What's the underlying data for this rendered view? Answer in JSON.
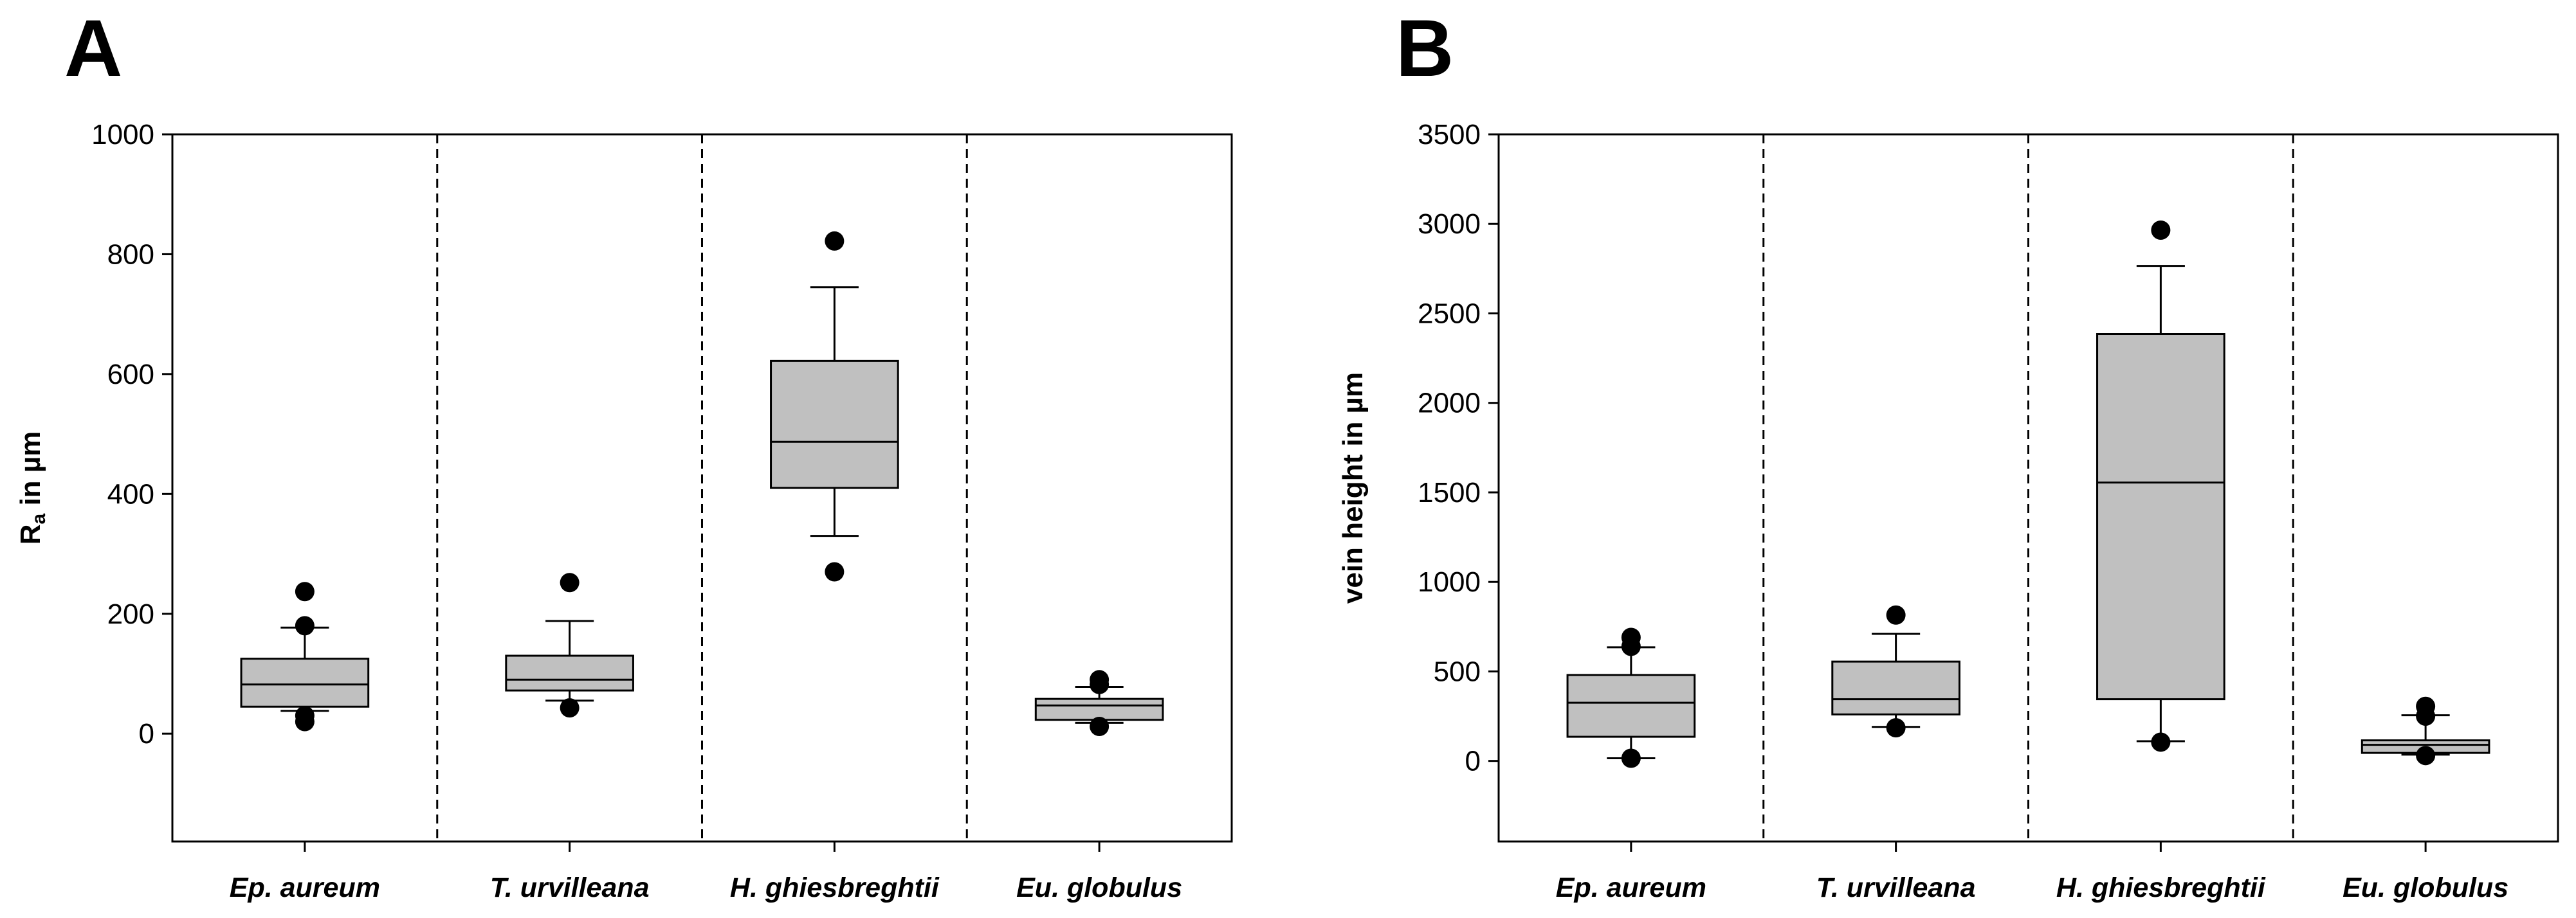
{
  "chart_data": [
    {
      "type": "box",
      "panel_label": "A",
      "title": "",
      "ylabel_main": "R",
      "ylabel_sub": "a",
      "ylabel_rest": " in µm",
      "xlabel": "",
      "ylim": [
        -180,
        1000
      ],
      "yticks": [
        0,
        200,
        400,
        600,
        800,
        1000
      ],
      "categories": [
        "Ep. aureum",
        "T. urvilleana",
        "H. ghiesbreghtii",
        "Eu. globulus"
      ],
      "box_color": "#c0c0c0",
      "boxes": [
        {
          "category": "Ep. aureum",
          "q1": 45,
          "median": 82,
          "q3": 125,
          "whisker_low": 38,
          "whisker_high": 177,
          "outliers": [
            237,
            180,
            30,
            20
          ]
        },
        {
          "category": "T. urvilleana",
          "q1": 72,
          "median": 90,
          "q3": 130,
          "whisker_low": 55,
          "whisker_high": 188,
          "outliers": [
            252,
            43
          ]
        },
        {
          "category": "H. ghiesbreghtii",
          "q1": 410,
          "median": 487,
          "q3": 622,
          "whisker_low": 330,
          "whisker_high": 745,
          "outliers": [
            822,
            270
          ]
        },
        {
          "category": "Eu. globulus",
          "q1": 23,
          "median": 47,
          "q3": 58,
          "whisker_low": 18,
          "whisker_high": 78,
          "outliers": [
            90,
            82,
            12
          ]
        }
      ]
    },
    {
      "type": "box",
      "panel_label": "B",
      "title": "",
      "ylabel_main": "vein height in µm",
      "ylabel_sub": "",
      "ylabel_rest": "",
      "xlabel": "",
      "ylim": [
        -450,
        3500
      ],
      "yticks": [
        0,
        500,
        1000,
        1500,
        2000,
        2500,
        3000,
        3500
      ],
      "categories": [
        "Ep. aureum",
        "T. urvilleana",
        "H. ghiesbreghtii",
        "Eu. globulus"
      ],
      "box_color": "#c0c0c0",
      "boxes": [
        {
          "category": "Ep. aureum",
          "q1": 135,
          "median": 325,
          "q3": 480,
          "whisker_low": 15,
          "whisker_high": 635,
          "outliers": [
            690,
            640,
            15
          ]
        },
        {
          "category": "T. urvilleana",
          "q1": 260,
          "median": 345,
          "q3": 555,
          "whisker_low": 190,
          "whisker_high": 710,
          "outliers": [
            815,
            185
          ]
        },
        {
          "category": "H. ghiesbreghtii",
          "q1": 345,
          "median": 1555,
          "q3": 2385,
          "whisker_low": 110,
          "whisker_high": 2765,
          "outliers": [
            2965,
            105
          ]
        },
        {
          "category": "Eu. globulus",
          "q1": 45,
          "median": 90,
          "q3": 115,
          "whisker_low": 35,
          "whisker_high": 255,
          "outliers": [
            305,
            250,
            30
          ]
        }
      ]
    }
  ]
}
